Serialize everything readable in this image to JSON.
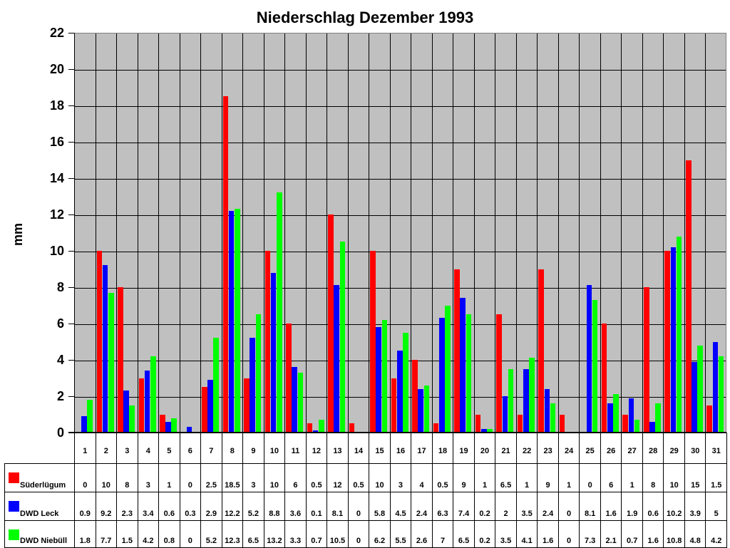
{
  "chart_data": {
    "type": "bar",
    "title": "Niederschlag Dezember 1993",
    "xlabel": "",
    "ylabel": "mm",
    "ylim": [
      0,
      22
    ],
    "yticks": [
      0,
      2,
      4,
      6,
      8,
      10,
      12,
      14,
      16,
      18,
      20,
      22
    ],
    "grid": true,
    "legend_position": "data-table-left",
    "categories": [
      "1",
      "2",
      "3",
      "4",
      "5",
      "6",
      "7",
      "8",
      "9",
      "10",
      "11",
      "12",
      "13",
      "14",
      "15",
      "16",
      "17",
      "18",
      "19",
      "20",
      "21",
      "22",
      "23",
      "24",
      "25",
      "26",
      "27",
      "28",
      "29",
      "30",
      "31"
    ],
    "series": [
      {
        "name": "Süderlügum",
        "color": "#ff0000",
        "values": [
          0,
          10,
          8,
          3,
          1,
          0,
          2.5,
          18.5,
          3,
          10,
          6,
          0.5,
          12,
          0.5,
          10,
          3,
          4,
          0.5,
          9,
          1,
          6.5,
          1,
          9,
          1,
          0,
          6,
          1,
          8,
          10,
          15,
          1.5
        ]
      },
      {
        "name": "DWD Leck",
        "color": "#0000ff",
        "values": [
          0.9,
          9.2,
          2.3,
          3.4,
          0.6,
          0.3,
          2.9,
          12.2,
          5.2,
          8.8,
          3.6,
          0.1,
          8.1,
          0,
          5.8,
          4.5,
          2.4,
          6.3,
          7.4,
          0.2,
          2,
          3.5,
          2.4,
          0,
          8.1,
          1.6,
          1.9,
          0.6,
          10.2,
          3.9,
          5
        ]
      },
      {
        "name": "DWD Niebüll",
        "color": "#00ff00",
        "values": [
          1.8,
          7.7,
          1.5,
          4.2,
          0.8,
          0,
          5.2,
          12.3,
          6.5,
          13.2,
          3.3,
          0.7,
          10.5,
          0,
          6.2,
          5.5,
          2.6,
          7,
          6.5,
          0.2,
          3.5,
          4.1,
          1.6,
          0,
          7.3,
          2.1,
          0.7,
          1.6,
          10.8,
          4.8,
          4.2
        ]
      }
    ]
  },
  "colors": {
    "plot_background": "#c0c0c0",
    "gridline": "#000000"
  }
}
